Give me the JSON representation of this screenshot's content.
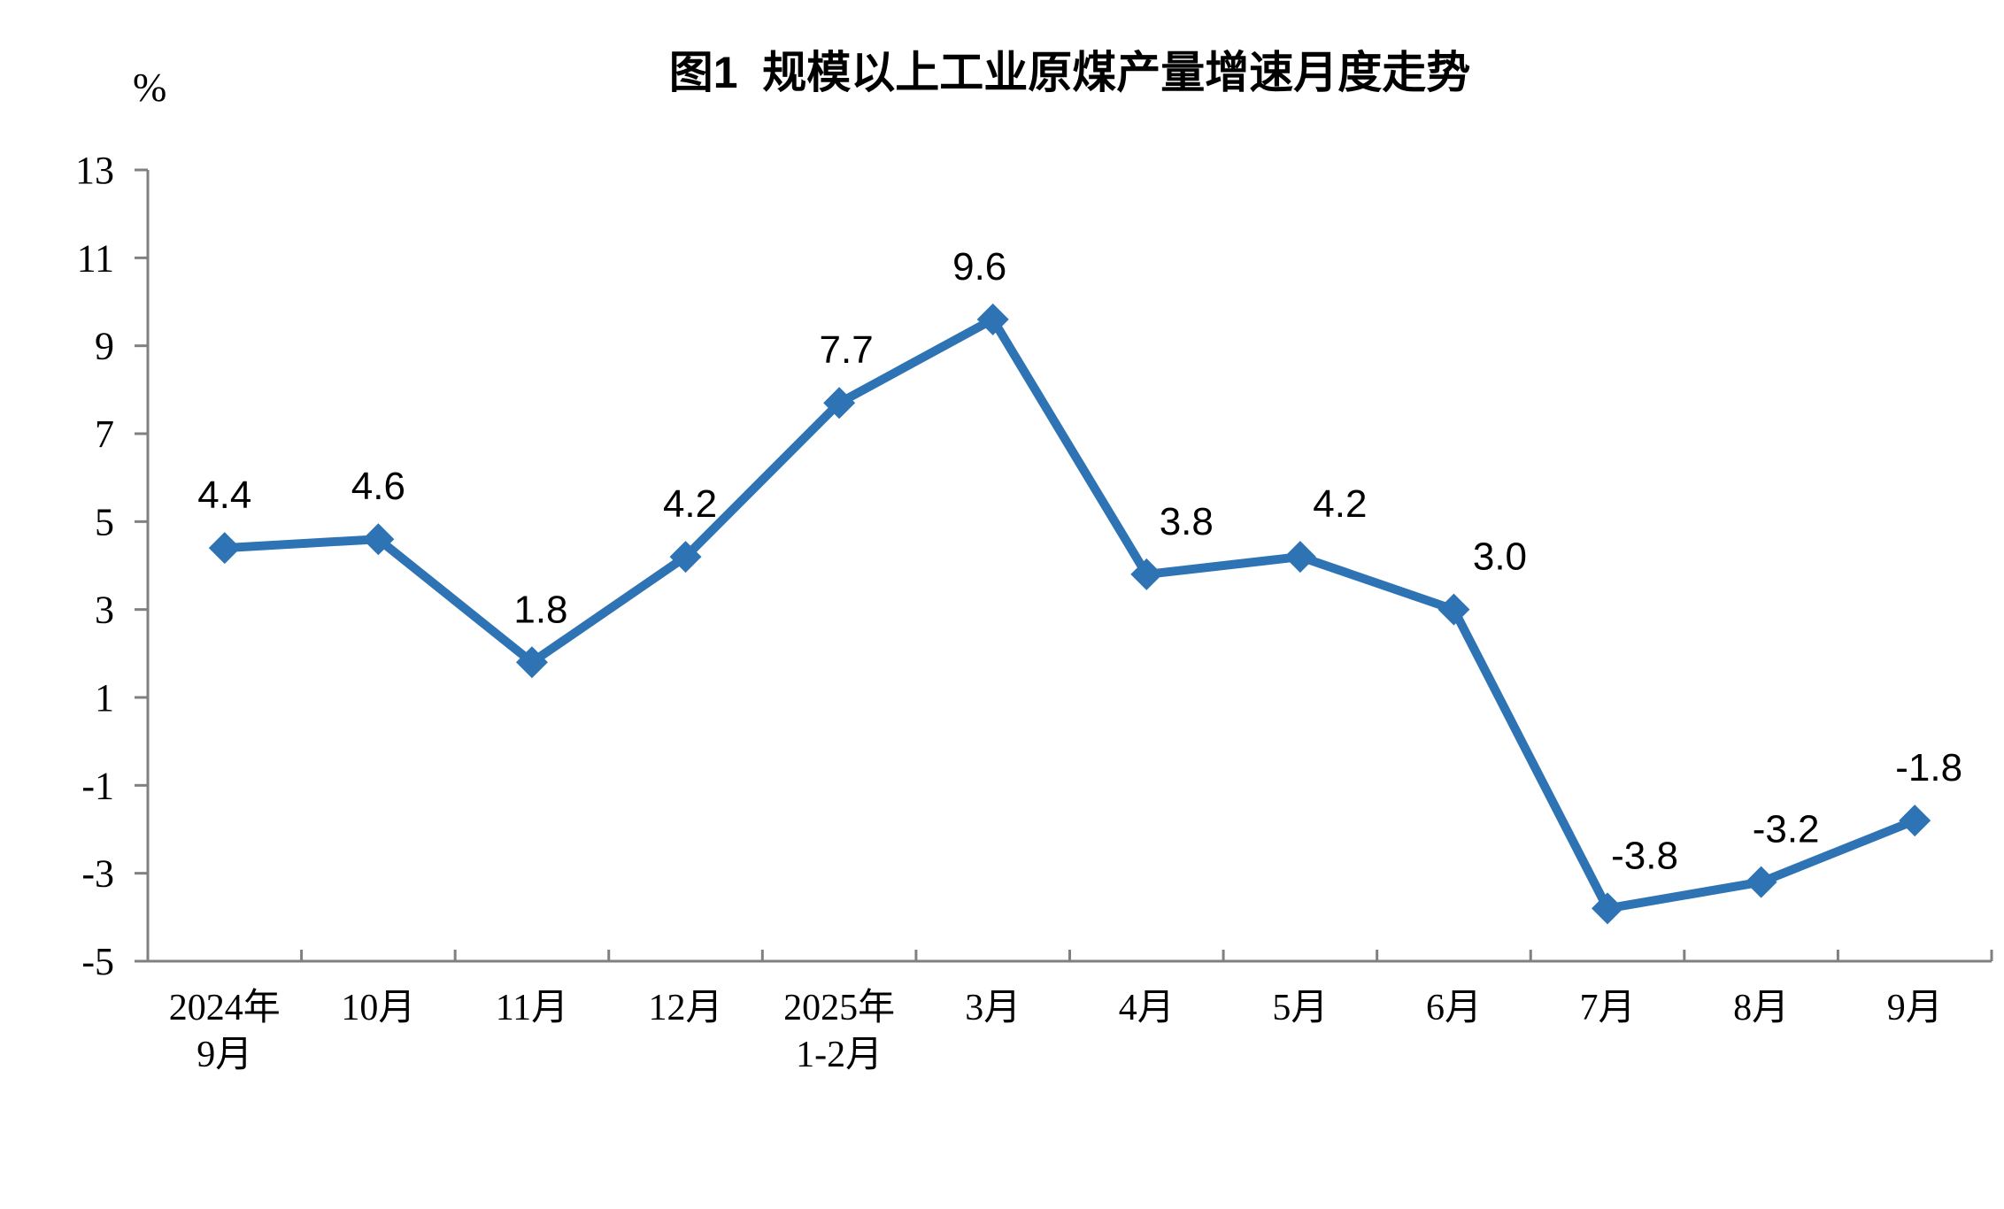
{
  "chart_data": {
    "type": "line",
    "title": "图1  规模以上工业原煤产量增速月度走势",
    "ylabel": "%",
    "xlabel": "",
    "categories": [
      [
        "2024年",
        "9月"
      ],
      [
        "10月"
      ],
      [
        "11月"
      ],
      [
        "12月"
      ],
      [
        "2025年",
        "1-2月"
      ],
      [
        "3月"
      ],
      [
        "4月"
      ],
      [
        "5月"
      ],
      [
        "6月"
      ],
      [
        "7月"
      ],
      [
        "8月"
      ],
      [
        "9月"
      ]
    ],
    "values": [
      4.4,
      4.6,
      1.8,
      4.2,
      7.7,
      9.6,
      3.8,
      4.2,
      3.0,
      -3.8,
      -3.2,
      -1.8
    ],
    "data_labels": [
      "4.4",
      "4.6",
      "1.8",
      "4.2",
      "7.7",
      "9.6",
      "3.8",
      "4.2",
      "3.0",
      "-3.8",
      "-3.2",
      "-1.8"
    ],
    "y_ticks": [
      13,
      11,
      9,
      7,
      5,
      3,
      1,
      -1,
      -3,
      -5
    ],
    "ylim": [
      -5,
      13
    ],
    "grid": false,
    "legend": "none",
    "marker": "diamond",
    "colors": {
      "line": "#2E74B5",
      "marker": "#2E74B5",
      "axis": "#808080",
      "text": "#000000",
      "background": "#FFFFFF"
    },
    "layout": {
      "label_dx": [
        0,
        0,
        10,
        5,
        8,
        -15,
        45,
        45,
        52,
        42,
        28,
        16
      ],
      "label_gap": 45
    }
  }
}
